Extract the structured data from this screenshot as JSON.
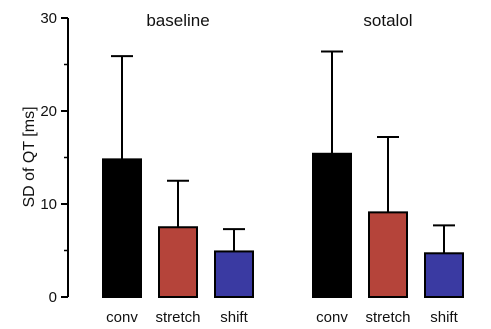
{
  "chart_data": {
    "type": "bar",
    "title": "",
    "xlabel": "",
    "ylabel": "SD of QT [ms]",
    "ylim": [
      0,
      30
    ],
    "y_ticks": [
      0,
      10,
      20,
      30
    ],
    "y_minor_ticks": [
      5,
      15,
      25
    ],
    "grid": false,
    "legend": "none",
    "error_bars": "upper-only",
    "groups": [
      {
        "name": "baseline",
        "bars": [
          {
            "category": "conv",
            "value": 14.8,
            "error_upper": 25.9,
            "color": "#000000"
          },
          {
            "category": "stretch",
            "value": 7.5,
            "error_upper": 12.5,
            "color": "#b5443a"
          },
          {
            "category": "shift",
            "value": 4.9,
            "error_upper": 7.3,
            "color": "#3a3aa2"
          }
        ]
      },
      {
        "name": "sotalol",
        "bars": [
          {
            "category": "conv",
            "value": 15.4,
            "error_upper": 26.4,
            "color": "#000000"
          },
          {
            "category": "stretch",
            "value": 9.1,
            "error_upper": 17.2,
            "color": "#b5443a"
          },
          {
            "category": "shift",
            "value": 4.7,
            "error_upper": 7.7,
            "color": "#3a3aa2"
          }
        ]
      }
    ]
  }
}
